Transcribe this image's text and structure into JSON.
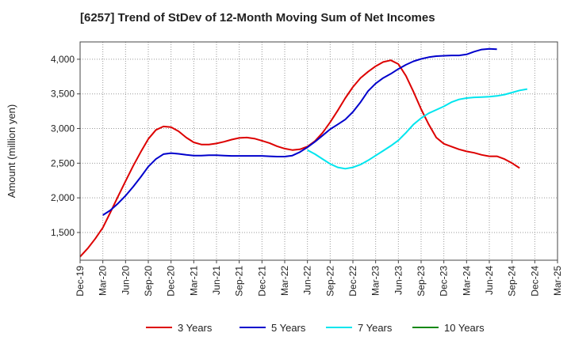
{
  "chart_data": {
    "type": "line",
    "title": "[6257]  Trend of StDev of 12-Month Moving Sum of Net Incomes",
    "xlabel": "",
    "ylabel": "Amount (million yen)",
    "ylim": [
      1100,
      4250
    ],
    "yticks": [
      1500,
      2000,
      2500,
      3000,
      3500,
      4000
    ],
    "ytick_labels": [
      "1,500",
      "2,000",
      "2,500",
      "3,000",
      "3,500",
      "4,000"
    ],
    "xtick_labels": [
      "Dec-19",
      "Mar-20",
      "Jun-20",
      "Sep-20",
      "Dec-20",
      "Mar-21",
      "Jun-21",
      "Sep-21",
      "Dec-21",
      "Mar-22",
      "Jun-22",
      "Sep-22",
      "Dec-22",
      "Mar-23",
      "Jun-23",
      "Sep-23",
      "Dec-23",
      "Mar-24",
      "Jun-24",
      "Sep-24",
      "Dec-24",
      "Mar-25"
    ],
    "grid": true,
    "legend_position": "bottom",
    "x_months": [
      "2019-12",
      "2020-01",
      "2020-02",
      "2020-03",
      "2020-04",
      "2020-05",
      "2020-06",
      "2020-07",
      "2020-08",
      "2020-09",
      "2020-10",
      "2020-11",
      "2020-12",
      "2021-01",
      "2021-02",
      "2021-03",
      "2021-04",
      "2021-05",
      "2021-06",
      "2021-07",
      "2021-08",
      "2021-09",
      "2021-10",
      "2021-11",
      "2021-12",
      "2022-01",
      "2022-02",
      "2022-03",
      "2022-04",
      "2022-05",
      "2022-06",
      "2022-07",
      "2022-08",
      "2022-09",
      "2022-10",
      "2022-11",
      "2022-12",
      "2023-01",
      "2023-02",
      "2023-03",
      "2023-04",
      "2023-05",
      "2023-06",
      "2023-07",
      "2023-08",
      "2023-09",
      "2023-10",
      "2023-11",
      "2023-12",
      "2024-01",
      "2024-02",
      "2024-03",
      "2024-04",
      "2024-05",
      "2024-06",
      "2024-07",
      "2024-08",
      "2024-09",
      "2024-10",
      "2024-11",
      "2024-12"
    ],
    "series": [
      {
        "name": "3 Years",
        "color": "#dd0000",
        "values": [
          1150,
          1270,
          1410,
          1570,
          1790,
          2020,
          2240,
          2460,
          2660,
          2850,
          2980,
          3030,
          3020,
          2960,
          2870,
          2800,
          2770,
          2770,
          2785,
          2810,
          2840,
          2865,
          2870,
          2855,
          2825,
          2790,
          2745,
          2710,
          2690,
          2700,
          2740,
          2820,
          2940,
          3090,
          3260,
          3440,
          3600,
          3730,
          3820,
          3900,
          3960,
          3985,
          3930,
          3760,
          3530,
          3280,
          3060,
          2870,
          2780,
          2740,
          2700,
          2670,
          2650,
          2620,
          2600,
          2600,
          2560,
          2500,
          2430,
          null,
          null
        ],
        "start_index": 0
      },
      {
        "name": "5 Years",
        "color": "#0000cc",
        "values": [
          1750,
          1820,
          1920,
          2030,
          2160,
          2300,
          2450,
          2560,
          2630,
          2645,
          2635,
          2620,
          2610,
          2610,
          2615,
          2615,
          2610,
          2605,
          2605,
          2605,
          2605,
          2605,
          2600,
          2595,
          2595,
          2610,
          2660,
          2730,
          2810,
          2900,
          2990,
          3060,
          3130,
          3240,
          3380,
          3540,
          3650,
          3730,
          3790,
          3860,
          3920,
          3970,
          4005,
          4030,
          4045,
          4050,
          4055,
          4055,
          4070,
          4110,
          4140,
          4150,
          4145
        ],
        "start_index": 3
      },
      {
        "name": "7 Years",
        "color": "#00e5ee",
        "values": [
          2690,
          2630,
          2560,
          2490,
          2440,
          2420,
          2440,
          2480,
          2540,
          2610,
          2680,
          2750,
          2830,
          2940,
          3060,
          3150,
          3220,
          3270,
          3320,
          3380,
          3420,
          3440,
          3450,
          3455,
          3460,
          3470,
          3490,
          3520,
          3550,
          3570
        ],
        "start_index": 30
      },
      {
        "name": "10 Years",
        "color": "#118811",
        "values": [],
        "start_index": 0
      }
    ]
  }
}
